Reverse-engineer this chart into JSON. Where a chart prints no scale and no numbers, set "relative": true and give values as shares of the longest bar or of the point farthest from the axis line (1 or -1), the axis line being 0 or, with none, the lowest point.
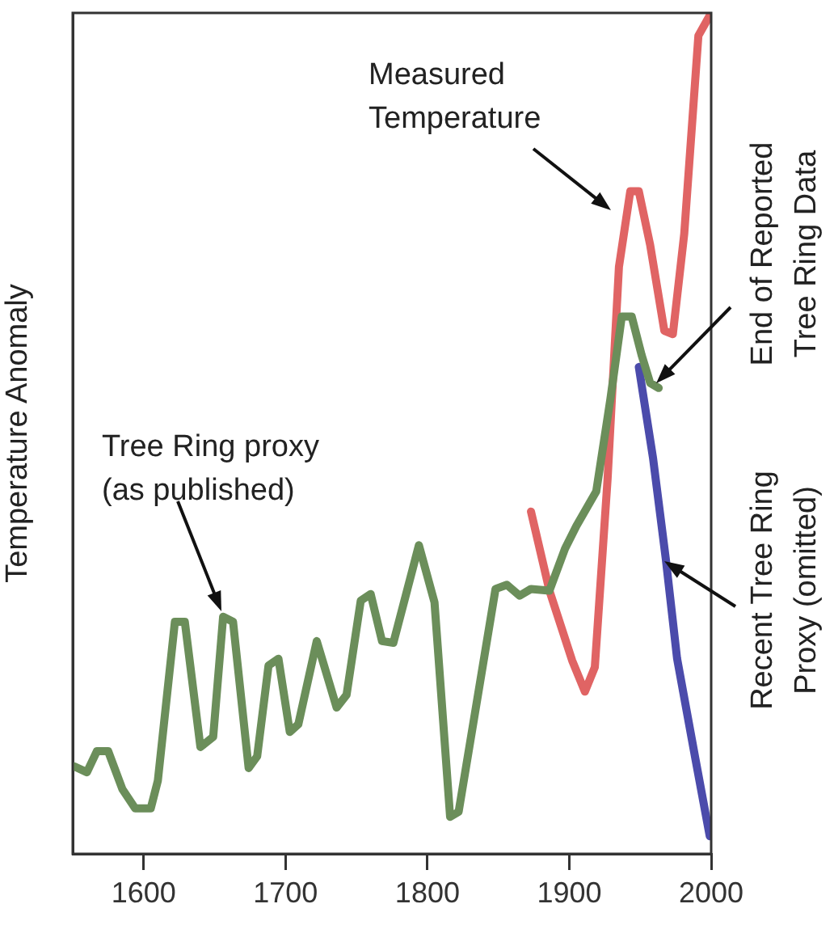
{
  "chart_data": {
    "type": "line",
    "relative": true,
    "ylabel": "Temperature Anomaly",
    "xlim": [
      1550,
      2000
    ],
    "xticks": [
      1600,
      1700,
      1800,
      1900,
      2000
    ],
    "grid": false,
    "legend": false,
    "marker": "none",
    "line_style": "solid",
    "series": [
      {
        "color": "#6b8e5a",
        "x": [
          1551,
          1560,
          1567,
          1575,
          1585,
          1594,
          1605,
          1610,
          1622,
          1629,
          1640,
          1649,
          1656,
          1663,
          1674,
          1680,
          1688,
          1695,
          1703,
          1709,
          1722,
          1736,
          1743,
          1753,
          1760,
          1768,
          1776,
          1794,
          1805,
          1816,
          1822,
          1848,
          1856,
          1865,
          1873,
          1886,
          1897,
          1905,
          1919,
          1929,
          1937,
          1944,
          1951,
          1957,
          1963
        ],
        "values": [
          0.104,
          0.097,
          0.122,
          0.122,
          0.077,
          0.054,
          0.054,
          0.087,
          0.276,
          0.276,
          0.127,
          0.139,
          0.282,
          0.276,
          0.102,
          0.116,
          0.224,
          0.232,
          0.145,
          0.154,
          0.253,
          0.174,
          0.189,
          0.301,
          0.309,
          0.253,
          0.251,
          0.367,
          0.299,
          0.044,
          0.05,
          0.315,
          0.32,
          0.307,
          0.315,
          0.313,
          0.363,
          0.39,
          0.431,
          0.541,
          0.639,
          0.639,
          0.593,
          0.56,
          0.554
        ]
      },
      {
        "color": "#e06464",
        "x": [
          1873,
          1886,
          1902,
          1911,
          1918,
          1927,
          1935,
          1943,
          1949,
          1957,
          1967,
          1973,
          1981,
          1991,
          2000
        ],
        "values": [
          0.407,
          0.313,
          0.23,
          0.193,
          0.222,
          0.446,
          0.698,
          0.788,
          0.788,
          0.724,
          0.622,
          0.618,
          0.737,
          0.973,
          1
        ]
      },
      {
        "color": "#4b4bab",
        "x": [
          1949,
          1959,
          1968,
          1976,
          1989,
          1999
        ],
        "values": [
          0.579,
          0.471,
          0.351,
          0.232,
          0.112,
          0.021
        ]
      }
    ],
    "annotations": [
      "Measured\nTemperature",
      "Tree Ring proxy\n(as published)",
      "End of Reported\nTree Ring Data",
      "Recent Tree Ring\nProxy (omitted)"
    ]
  }
}
